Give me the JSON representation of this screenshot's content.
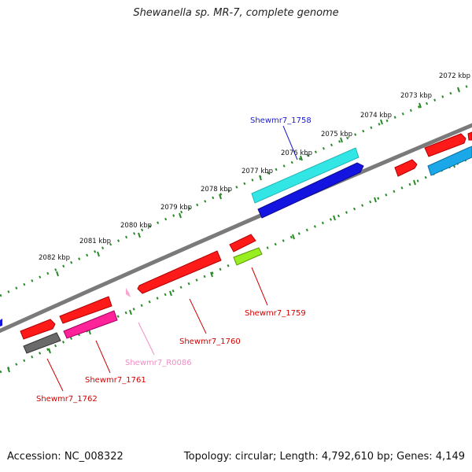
{
  "title": "Shewanella sp. MR-7, complete genome",
  "footer": {
    "accession": "Accession: NC_008322",
    "summary": "Topology: circular; Length: 4,792,610 bp; Genes: 4,149"
  },
  "scale_labels": [
    "2072 kbp",
    "2073 kbp",
    "2074 kbp",
    "2075 kbp",
    "2076 kbp",
    "2077 kbp",
    "2078 kbp",
    "2079 kbp",
    "2080 kbp",
    "2081 kbp",
    "2082 kbp"
  ],
  "gene_labels": [
    {
      "text": "Shewmr7_1758",
      "color": "#1a1ad0"
    },
    {
      "text": "Shewmr7_1759",
      "color": "#d40000"
    },
    {
      "text": "Shewmr7_1760",
      "color": "#d40000"
    },
    {
      "text": "Shewmr7_R0086",
      "color": "#f08ec4"
    },
    {
      "text": "Shewmr7_1761",
      "color": "#d40000"
    },
    {
      "text": "Shewmr7_1762",
      "color": "#d40000"
    }
  ],
  "colors": {
    "backbone": "#7a7a7a",
    "ruler": "#2a8a2a",
    "cds_red": "#ff1a1a",
    "cds_blue": "#1414e0",
    "cds_cyan": "#33e6e6",
    "cds_lightblue": "#1aa8e8",
    "cds_magenta": "#ff2299",
    "cds_grey": "#6a6a6a",
    "cds_green": "#99ee22",
    "rna_pink": "#f8a8d0"
  }
}
